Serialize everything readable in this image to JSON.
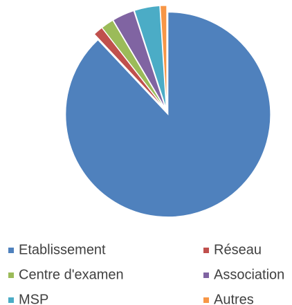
{
  "chart_data": {
    "type": "pie",
    "categories": [
      "Etablissement",
      "Réseau",
      "Centre d'examen",
      "Association",
      "MSP",
      "Autres"
    ],
    "values": [
      88,
      1.5,
      2,
      3.5,
      4,
      1
    ],
    "colors": [
      "#4f81bd",
      "#c0504d",
      "#9bbb59",
      "#8064a2",
      "#4bacc6",
      "#f79646"
    ],
    "legend": "bottom"
  }
}
